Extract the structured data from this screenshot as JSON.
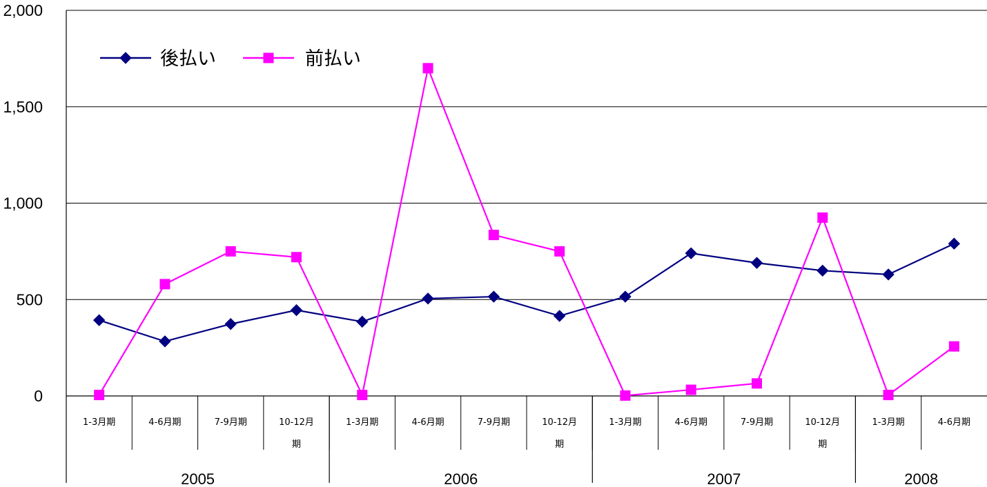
{
  "chart_data": {
    "type": "line",
    "title": "",
    "xlabel": "",
    "ylabel": "",
    "ylim": [
      0,
      2000
    ],
    "yticks": [
      "0",
      "500",
      "1,000",
      "1,500",
      "2,000"
    ],
    "ytick_values": [
      0,
      500,
      1000,
      1500,
      2000
    ],
    "grid": "horizontal",
    "legend_position": "top-left",
    "categories": [
      [
        "1-3月期"
      ],
      [
        "4-6月期"
      ],
      [
        "7-9月期"
      ],
      [
        "10-12月",
        "期"
      ],
      [
        "1-3月期"
      ],
      [
        "4-6月期"
      ],
      [
        "7-9月期"
      ],
      [
        "10-12月",
        "期"
      ],
      [
        "1-3月期"
      ],
      [
        "4-6月期"
      ],
      [
        "7-9月期"
      ],
      [
        "10-12月",
        "期"
      ],
      [
        "1-3月期"
      ],
      [
        "4-6月期"
      ]
    ],
    "years": [
      {
        "label": "2005",
        "span": 4
      },
      {
        "label": "2006",
        "span": 4
      },
      {
        "label": "2007",
        "span": 4
      },
      {
        "label": "2008",
        "span": 2
      }
    ],
    "series": [
      {
        "name": "後払い",
        "color": "#000080",
        "marker": "diamond",
        "values": [
          393,
          283,
          373,
          445,
          385,
          505,
          515,
          415,
          515,
          740,
          690,
          650,
          630,
          790
        ]
      },
      {
        "name": "前払い",
        "color": "#ff00ff",
        "marker": "square",
        "values": [
          5,
          580,
          750,
          720,
          5,
          1700,
          835,
          750,
          2,
          32,
          65,
          925,
          5,
          257
        ]
      }
    ]
  }
}
